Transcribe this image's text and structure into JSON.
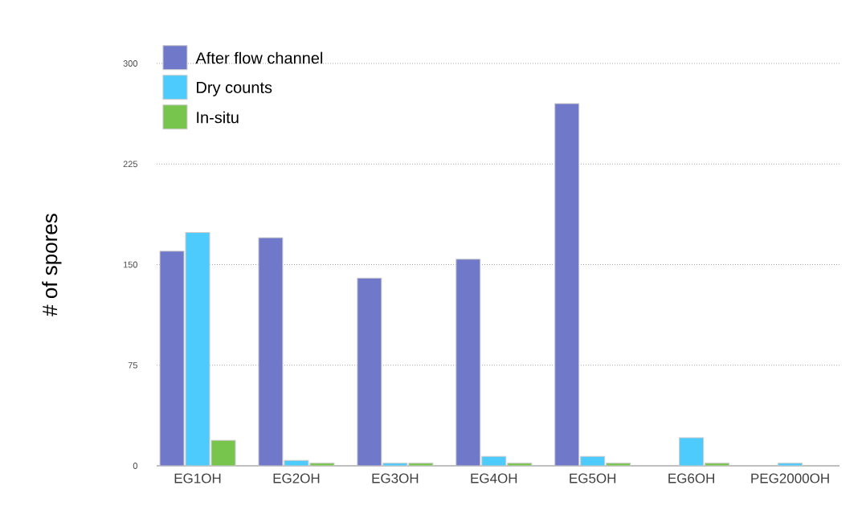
{
  "chart_data": {
    "type": "bar",
    "ylabel": "# of spores",
    "categories": [
      "EG1OH",
      "EG2OH",
      "EG3OH",
      "EG4OH",
      "EG5OH",
      "EG6OH",
      "PEG2000OH"
    ],
    "series": [
      {
        "name": "After flow channel",
        "color": "#7079c9",
        "values": [
          160,
          170,
          140,
          154,
          270,
          null,
          null
        ]
      },
      {
        "name": "Dry counts",
        "color": "#4dcbfc",
        "values": [
          174,
          4,
          2,
          7,
          7,
          21,
          2
        ]
      },
      {
        "name": "In-situ",
        "color": "#78c54d",
        "values": [
          19,
          2,
          2,
          2,
          2,
          2,
          null
        ]
      }
    ],
    "ylim": [
      0,
      300
    ],
    "yticks": [
      0,
      75,
      150,
      225,
      300
    ],
    "grid": "y",
    "legend": "top left"
  }
}
